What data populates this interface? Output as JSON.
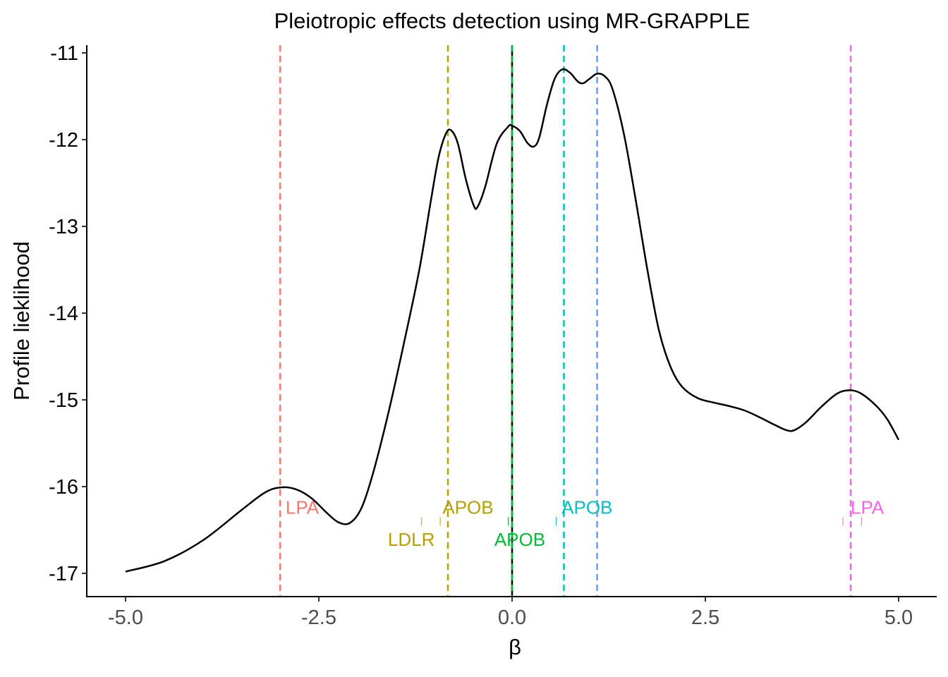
{
  "chart_data": {
    "type": "line",
    "title": "Pleiotropic effects detection using MR-GRAPPLE",
    "xlabel": "β",
    "ylabel": "Profile lieklihood",
    "xlim": [
      -5.3,
      5.5
    ],
    "ylim": [
      -17.3,
      -10.9
    ],
    "xticks": [
      -5.0,
      -2.5,
      0.0,
      2.5,
      5.0
    ],
    "xtick_labels": [
      "-5.0",
      "-2.5",
      "0.0",
      "2.5",
      "5.0"
    ],
    "yticks": [
      -11,
      -12,
      -13,
      -14,
      -15,
      -16,
      -17
    ],
    "ytick_labels": [
      "-11",
      "-12",
      "-13",
      "-14",
      "-15",
      "-16",
      "-17"
    ],
    "grid": false,
    "legend": "none",
    "curve": {
      "color": "#000000",
      "points": [
        [
          -5.0,
          -16.98
        ],
        [
          -4.5,
          -16.86
        ],
        [
          -4.0,
          -16.62
        ],
        [
          -3.5,
          -16.27
        ],
        [
          -3.2,
          -16.07
        ],
        [
          -3.0,
          -16.01
        ],
        [
          -2.8,
          -16.03
        ],
        [
          -2.6,
          -16.13
        ],
        [
          -2.4,
          -16.3
        ],
        [
          -2.25,
          -16.41
        ],
        [
          -2.1,
          -16.42
        ],
        [
          -1.95,
          -16.25
        ],
        [
          -1.8,
          -15.85
        ],
        [
          -1.6,
          -15.15
        ],
        [
          -1.4,
          -14.35
        ],
        [
          -1.2,
          -13.5
        ],
        [
          -1.05,
          -12.7
        ],
        [
          -0.95,
          -12.2
        ],
        [
          -0.85,
          -11.92
        ],
        [
          -0.78,
          -11.9
        ],
        [
          -0.7,
          -12.05
        ],
        [
          -0.6,
          -12.45
        ],
        [
          -0.5,
          -12.75
        ],
        [
          -0.45,
          -12.78
        ],
        [
          -0.35,
          -12.55
        ],
        [
          -0.2,
          -12.05
        ],
        [
          -0.05,
          -11.85
        ],
        [
          0.0,
          -11.84
        ],
        [
          0.1,
          -11.9
        ],
        [
          0.2,
          -12.04
        ],
        [
          0.28,
          -12.08
        ],
        [
          0.35,
          -11.98
        ],
        [
          0.45,
          -11.6
        ],
        [
          0.55,
          -11.3
        ],
        [
          0.65,
          -11.19
        ],
        [
          0.75,
          -11.23
        ],
        [
          0.85,
          -11.33
        ],
        [
          0.92,
          -11.35
        ],
        [
          1.0,
          -11.3
        ],
        [
          1.1,
          -11.24
        ],
        [
          1.2,
          -11.27
        ],
        [
          1.3,
          -11.42
        ],
        [
          1.45,
          -11.95
        ],
        [
          1.6,
          -12.7
        ],
        [
          1.75,
          -13.5
        ],
        [
          1.9,
          -14.2
        ],
        [
          2.05,
          -14.62
        ],
        [
          2.2,
          -14.85
        ],
        [
          2.4,
          -14.98
        ],
        [
          2.6,
          -15.03
        ],
        [
          2.8,
          -15.07
        ],
        [
          3.0,
          -15.12
        ],
        [
          3.2,
          -15.2
        ],
        [
          3.4,
          -15.29
        ],
        [
          3.55,
          -15.35
        ],
        [
          3.65,
          -15.35
        ],
        [
          3.8,
          -15.26
        ],
        [
          4.0,
          -15.08
        ],
        [
          4.2,
          -14.93
        ],
        [
          4.35,
          -14.89
        ],
        [
          4.5,
          -14.92
        ],
        [
          4.7,
          -15.06
        ],
        [
          4.85,
          -15.22
        ],
        [
          5.0,
          -15.46
        ]
      ]
    },
    "vlines": [
      {
        "x": -3.0,
        "color": "#F8766D",
        "style": "dashed"
      },
      {
        "x": -0.83,
        "color": "#B79F00",
        "style": "dashed"
      },
      {
        "x": 0.0,
        "color": "#000000",
        "style": "solid"
      },
      {
        "x": 0.0,
        "color": "#00BA38",
        "style": "dashed"
      },
      {
        "x": 0.67,
        "color": "#00BFC4",
        "style": "dashed"
      },
      {
        "x": 1.1,
        "color": "#619CFF",
        "style": "dashed"
      },
      {
        "x": 4.38,
        "color": "#F564E3",
        "style": "dashed"
      }
    ],
    "annotations": [
      {
        "text": "LPA",
        "x": -2.93,
        "y": -16.23,
        "color": "#F8766D",
        "anchor": "start"
      },
      {
        "text": "APOB",
        "x": -0.9,
        "y": -16.23,
        "color": "#B79F00",
        "anchor": "start"
      },
      {
        "text": "LDLR",
        "x": -1.0,
        "y": -16.6,
        "color": "#B79F00",
        "anchor": "end"
      },
      {
        "text": "APOB",
        "x": 0.1,
        "y": -16.6,
        "color": "#00BA38",
        "anchor": "middle"
      },
      {
        "text": "APOB",
        "x": 0.64,
        "y": -16.23,
        "color": "#00BFC4",
        "anchor": "start"
      },
      {
        "text": "LPA",
        "x": 4.38,
        "y": -16.23,
        "color": "#F564E3",
        "anchor": "start"
      }
    ],
    "segments": [
      {
        "x": -1.17,
        "y1": -16.35,
        "y2": -16.45,
        "color": "#B79F00"
      },
      {
        "x": -0.93,
        "y1": -16.35,
        "y2": -16.45,
        "color": "#B79F00"
      },
      {
        "x": -0.05,
        "y1": -16.35,
        "y2": -16.45,
        "color": "#00BA38"
      },
      {
        "x": 0.57,
        "y1": -16.35,
        "y2": -16.45,
        "color": "#00BFC4"
      },
      {
        "x": 4.28,
        "y1": -16.35,
        "y2": -16.45,
        "color": "#F564E3"
      },
      {
        "x": 4.52,
        "y1": -16.35,
        "y2": -16.45,
        "color": "#F564E3"
      }
    ]
  }
}
